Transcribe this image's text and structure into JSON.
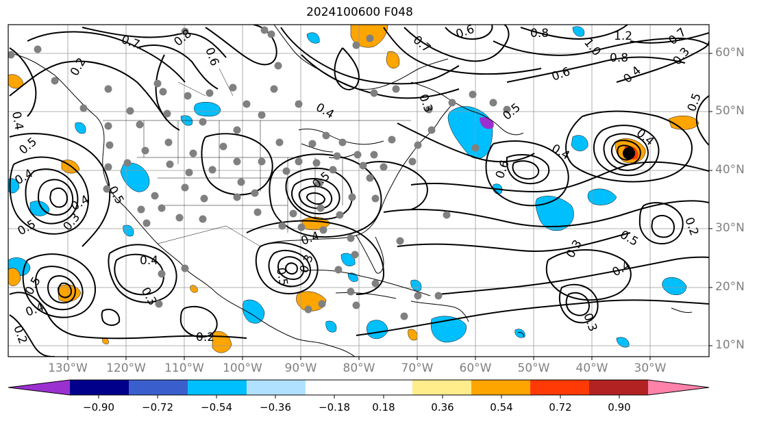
{
  "title": "2024100600 F048",
  "lat_labels": [
    "60°N",
    "50°N",
    "40°N",
    "30°N",
    "20°N",
    "10°N"
  ],
  "lon_labels": [
    "130°W",
    "120°W",
    "110°W",
    "100°W",
    "90°W",
    "80°W",
    "70°W",
    "60°W",
    "50°W",
    "40°W",
    "30°W"
  ],
  "colorbar": {
    "colors": [
      "#9b30d0",
      "#00008b",
      "#3a5fcd",
      "#00bfff",
      "#b0e2ff",
      "#ffffff",
      "#ffec8b",
      "#ffa500",
      "#ff3a05",
      "#b22222",
      "#ff82ab"
    ],
    "tick_labels": [
      "−0.90",
      "−0.72",
      "−0.54",
      "−0.36",
      "−0.18",
      "0.18",
      "0.36",
      "0.54",
      "0.72",
      "0.90"
    ]
  },
  "contour_labels": [
    "0.2",
    "0.7",
    "0.8",
    "0.6",
    "0.7",
    "0.6",
    "0.8",
    "1.2",
    "1.0",
    "0.8",
    "0.7",
    "0.3",
    "0.6",
    "0.4",
    "0.5",
    "0.4",
    "0.4",
    "0.5",
    "0.6",
    "0.4",
    "0.5",
    "0.4",
    "0.5",
    "0.3",
    "0.5",
    "0.4",
    "0.4",
    "0.3",
    "0.5",
    "0.4",
    "0.2",
    "0.2",
    "0.5",
    "0.5",
    "0.3",
    "0.4",
    "0.3",
    "0.2",
    "0.5",
    "0.4",
    "0.3",
    "0.3",
    "0.4"
  ]
}
